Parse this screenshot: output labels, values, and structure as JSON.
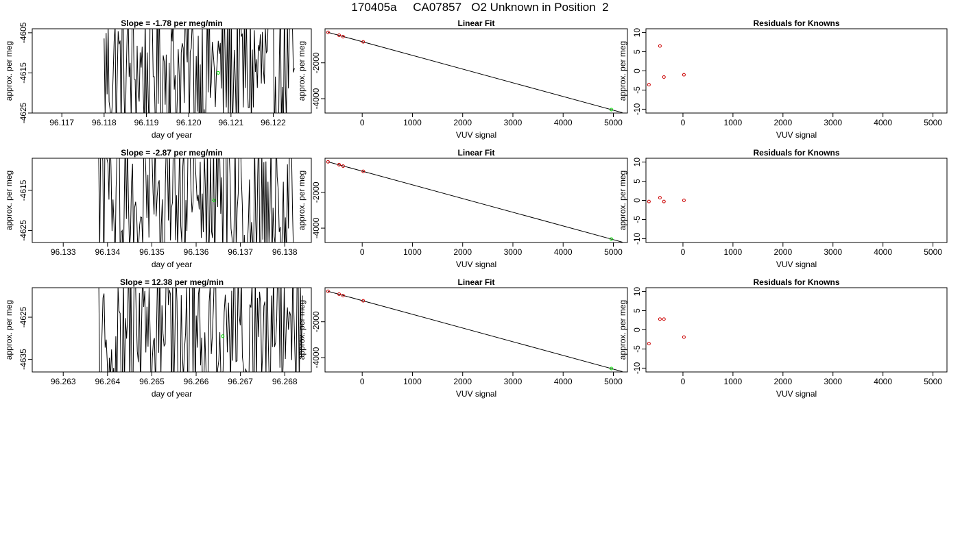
{
  "page": {
    "title": "170405a     CA07857   O2 Unknown in Position  2"
  },
  "colors": {
    "trace": "#000000",
    "known_points": "#cc0000",
    "unknown_point": "#00dd00",
    "frame": "#000000"
  },
  "chart_data": [
    {
      "type": "line",
      "row": 0,
      "col": 0,
      "title": "Slope =  -1.78  per meg/min",
      "xlabel": "day of year",
      "ylabel": "approx. per meg",
      "xlim": [
        96.1163,
        96.1229
      ],
      "ylim": [
        -4625,
        -4604
      ],
      "xticks": [
        96.117,
        96.118,
        96.119,
        96.12,
        96.121,
        96.122
      ],
      "xtick_labels": [
        "96.117",
        "96.118",
        "96.119",
        "96.120",
        "96.121",
        "96.122"
      ],
      "yticks": [
        -4625,
        -4615,
        -4605
      ],
      "ytick_labels": [
        "-4625",
        "-4615",
        "-4605"
      ],
      "trace_x_range": [
        96.118,
        96.1225
      ],
      "unknown_marker": {
        "x": 96.1207,
        "y": -4615
      }
    },
    {
      "type": "scatter",
      "row": 0,
      "col": 1,
      "title": "Linear Fit",
      "xlabel": "VUV signal",
      "ylabel": "approx. per meg",
      "xlim": [
        -740,
        5280
      ],
      "ylim": [
        -4800,
        -100
      ],
      "xticks": [
        0,
        1000,
        2000,
        3000,
        4000,
        5000
      ],
      "xtick_labels": [
        "0",
        "1000",
        "2000",
        "3000",
        "4000",
        "5000"
      ],
      "yticks": [
        -4000,
        -2000
      ],
      "ytick_labels": [
        "-4000",
        "-2000"
      ],
      "fit_line": [
        [
          -680,
          -300
        ],
        [
          5180,
          -4780
        ]
      ],
      "knowns": [
        {
          "x": -680,
          "y": -300
        },
        {
          "x": -460,
          "y": -460
        },
        {
          "x": -380,
          "y": -540
        },
        {
          "x": 20,
          "y": -830
        }
      ],
      "unknown": {
        "x": 4960,
        "y": -4610
      }
    },
    {
      "type": "scatter",
      "row": 0,
      "col": 2,
      "title": "Residuals for Knowns",
      "xlabel": "VUV signal",
      "ylabel": "approx. per meg",
      "xlim": [
        -740,
        5280
      ],
      "ylim": [
        -11,
        11
      ],
      "xticks": [
        0,
        1000,
        2000,
        3000,
        4000,
        5000
      ],
      "xtick_labels": [
        "0",
        "1000",
        "2000",
        "3000",
        "4000",
        "5000"
      ],
      "yticks": [
        -10,
        -5,
        0,
        5,
        10
      ],
      "ytick_labels": [
        "-10",
        "-5",
        "0",
        "5",
        "10"
      ],
      "points": [
        {
          "x": -680,
          "y": -3.6
        },
        {
          "x": -460,
          "y": 6.5
        },
        {
          "x": -380,
          "y": -1.6
        },
        {
          "x": 20,
          "y": -1.0
        }
      ]
    },
    {
      "type": "line",
      "row": 1,
      "col": 0,
      "title": "Slope =  -2.87  per meg/min",
      "xlabel": "day of year",
      "ylabel": "approx. per meg",
      "xlim": [
        96.1323,
        96.1386
      ],
      "ylim": [
        -4628,
        -4607
      ],
      "xticks": [
        96.133,
        96.134,
        96.135,
        96.136,
        96.137,
        96.138
      ],
      "xtick_labels": [
        "96.133",
        "96.134",
        "96.135",
        "96.136",
        "96.137",
        "96.138"
      ],
      "yticks": [
        -4625,
        -4615
      ],
      "ytick_labels": [
        "-4625",
        "-4615"
      ],
      "trace_x_range": [
        96.1338,
        96.1382
      ],
      "unknown_marker": {
        "x": 96.1364,
        "y": -4617.5
      }
    },
    {
      "type": "scatter",
      "row": 1,
      "col": 1,
      "title": "Linear Fit",
      "xlabel": "VUV signal",
      "ylabel": "approx. per meg",
      "xlim": [
        -740,
        5280
      ],
      "ylim": [
        -4800,
        -100
      ],
      "xticks": [
        0,
        1000,
        2000,
        3000,
        4000,
        5000
      ],
      "xtick_labels": [
        "0",
        "1000",
        "2000",
        "3000",
        "4000",
        "5000"
      ],
      "yticks": [
        -4000,
        -2000
      ],
      "ytick_labels": [
        "-4000",
        "-2000"
      ],
      "fit_line": [
        [
          -680,
          -300
        ],
        [
          5180,
          -4780
        ]
      ],
      "knowns": [
        {
          "x": -680,
          "y": -300
        },
        {
          "x": -460,
          "y": -460
        },
        {
          "x": -380,
          "y": -540
        },
        {
          "x": 20,
          "y": -830
        }
      ],
      "unknown": {
        "x": 4960,
        "y": -4610
      }
    },
    {
      "type": "scatter",
      "row": 1,
      "col": 2,
      "title": "Residuals for Knowns",
      "xlabel": "VUV signal",
      "ylabel": "approx. per meg",
      "xlim": [
        -740,
        5280
      ],
      "ylim": [
        -11,
        11
      ],
      "xticks": [
        0,
        1000,
        2000,
        3000,
        4000,
        5000
      ],
      "xtick_labels": [
        "0",
        "1000",
        "2000",
        "3000",
        "4000",
        "5000"
      ],
      "yticks": [
        -10,
        -5,
        0,
        5,
        10
      ],
      "ytick_labels": [
        "-10",
        "-5",
        "0",
        "5",
        "10"
      ],
      "points": [
        {
          "x": -680,
          "y": -0.3
        },
        {
          "x": -460,
          "y": 0.7
        },
        {
          "x": -380,
          "y": -0.3
        },
        {
          "x": 20,
          "y": 0.0
        }
      ]
    },
    {
      "type": "line",
      "row": 2,
      "col": 0,
      "title": "Slope =  12.38  per meg/min",
      "xlabel": "day of year",
      "ylabel": "approx. per meg",
      "xlim": [
        96.2623,
        96.2686
      ],
      "ylim": [
        -4638,
        -4618
      ],
      "xticks": [
        96.263,
        96.264,
        96.265,
        96.266,
        96.267,
        96.268
      ],
      "xtick_labels": [
        "96.263",
        "96.264",
        "96.265",
        "96.266",
        "96.267",
        "96.268"
      ],
      "yticks": [
        -4635,
        -4625
      ],
      "ytick_labels": [
        "-4635",
        "-4625"
      ],
      "trace_x_range": [
        96.2638,
        96.2684
      ],
      "unknown_marker": {
        "x": 96.2666,
        "y": -4629.5
      }
    },
    {
      "type": "scatter",
      "row": 2,
      "col": 1,
      "title": "Linear Fit",
      "xlabel": "VUV signal",
      "ylabel": "approx. per meg",
      "xlim": [
        -740,
        5280
      ],
      "ylim": [
        -4800,
        -100
      ],
      "xticks": [
        0,
        1000,
        2000,
        3000,
        4000,
        5000
      ],
      "xtick_labels": [
        "0",
        "1000",
        "2000",
        "3000",
        "4000",
        "5000"
      ],
      "yticks": [
        -4000,
        -2000
      ],
      "ytick_labels": [
        "-4000",
        "-2000"
      ],
      "fit_line": [
        [
          -680,
          -300
        ],
        [
          5180,
          -4780
        ]
      ],
      "knowns": [
        {
          "x": -680,
          "y": -300
        },
        {
          "x": -460,
          "y": -460
        },
        {
          "x": -380,
          "y": -540
        },
        {
          "x": 20,
          "y": -830
        }
      ],
      "unknown": {
        "x": 4960,
        "y": -4610
      }
    },
    {
      "type": "scatter",
      "row": 2,
      "col": 2,
      "title": "Residuals for Knowns",
      "xlabel": "VUV signal",
      "ylabel": "approx. per meg",
      "xlim": [
        -740,
        5280
      ],
      "ylim": [
        -11,
        11
      ],
      "xticks": [
        0,
        1000,
        2000,
        3000,
        4000,
        5000
      ],
      "xtick_labels": [
        "0",
        "1000",
        "2000",
        "3000",
        "4000",
        "5000"
      ],
      "yticks": [
        -10,
        -5,
        0,
        5,
        10
      ],
      "ytick_labels": [
        "-10",
        "-5",
        "0",
        "5",
        "10"
      ],
      "points": [
        {
          "x": -680,
          "y": -3.6
        },
        {
          "x": -460,
          "y": 2.8
        },
        {
          "x": -380,
          "y": 2.8
        },
        {
          "x": 20,
          "y": -1.9
        }
      ]
    }
  ]
}
